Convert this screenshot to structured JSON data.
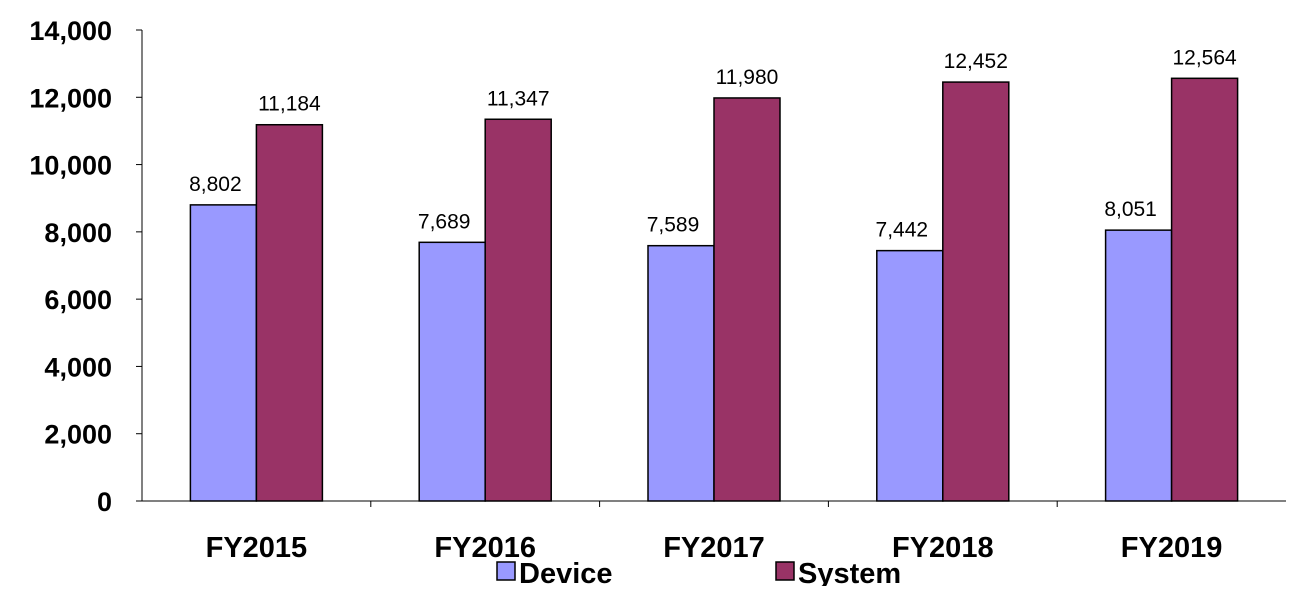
{
  "chart_data": {
    "type": "bar",
    "categories": [
      "FY2015",
      "FY2016",
      "FY2017",
      "FY2018",
      "FY2019"
    ],
    "series": [
      {
        "name": "Device",
        "values": [
          8802,
          7689,
          7589,
          7442,
          8051
        ],
        "color": "#9999ff"
      },
      {
        "name": "System",
        "values": [
          11184,
          11347,
          11980,
          12452,
          12564
        ],
        "color": "#993366"
      }
    ],
    "value_labels": {
      "Device": [
        "8,802",
        "7,689",
        "7,589",
        "7,442",
        "8,051"
      ],
      "System": [
        "11,184",
        "11,347",
        "11,980",
        "12,452",
        "12,564"
      ]
    },
    "ylim": [
      0,
      14000
    ],
    "yticks": [
      0,
      2000,
      4000,
      6000,
      8000,
      10000,
      12000,
      14000
    ],
    "ytick_labels": [
      "0",
      "2,000",
      "4,000",
      "6,000",
      "8,000",
      "10,000",
      "12,000",
      "14,000"
    ],
    "grid": false,
    "legend_position": "bottom",
    "title": "",
    "xlabel": "",
    "ylabel": ""
  }
}
